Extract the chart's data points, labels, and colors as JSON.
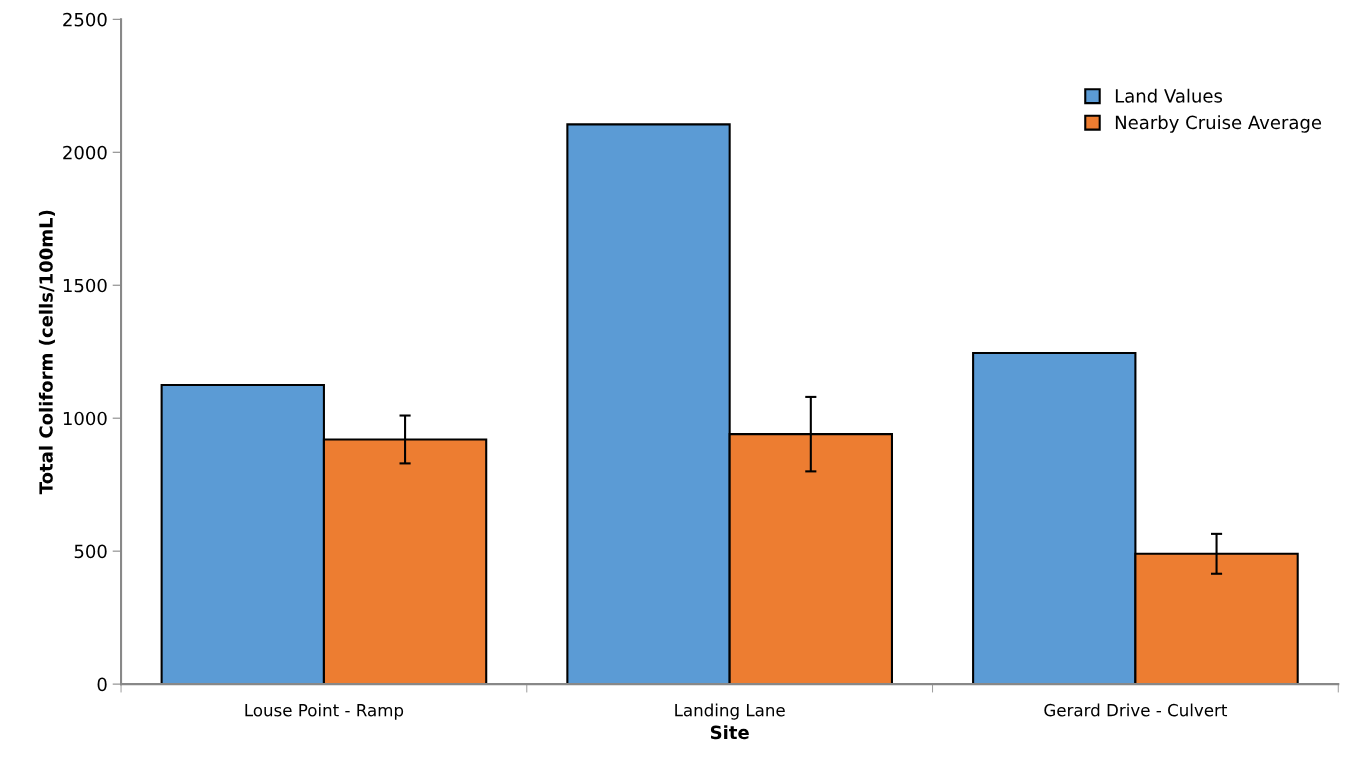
{
  "chart_data": {
    "type": "bar",
    "xlabel": "Site",
    "ylabel": "Total Coliform (cells/100mL)",
    "categories": [
      "Louse Point - Ramp",
      "Landing Lane",
      "Gerard Drive - Culvert"
    ],
    "series": [
      {
        "name": "Land Values",
        "color": "#5b9bd5",
        "values": [
          1125,
          2105,
          1245
        ]
      },
      {
        "name": "Nearby Cruise Average",
        "color": "#ed7d31",
        "values": [
          920,
          940,
          490
        ],
        "errors": [
          90,
          140,
          75
        ]
      }
    ],
    "ylim": [
      0,
      2500
    ],
    "yticks": [
      0,
      500,
      1000,
      1500,
      2000,
      2500
    ],
    "grid": false,
    "legend": "top right"
  }
}
